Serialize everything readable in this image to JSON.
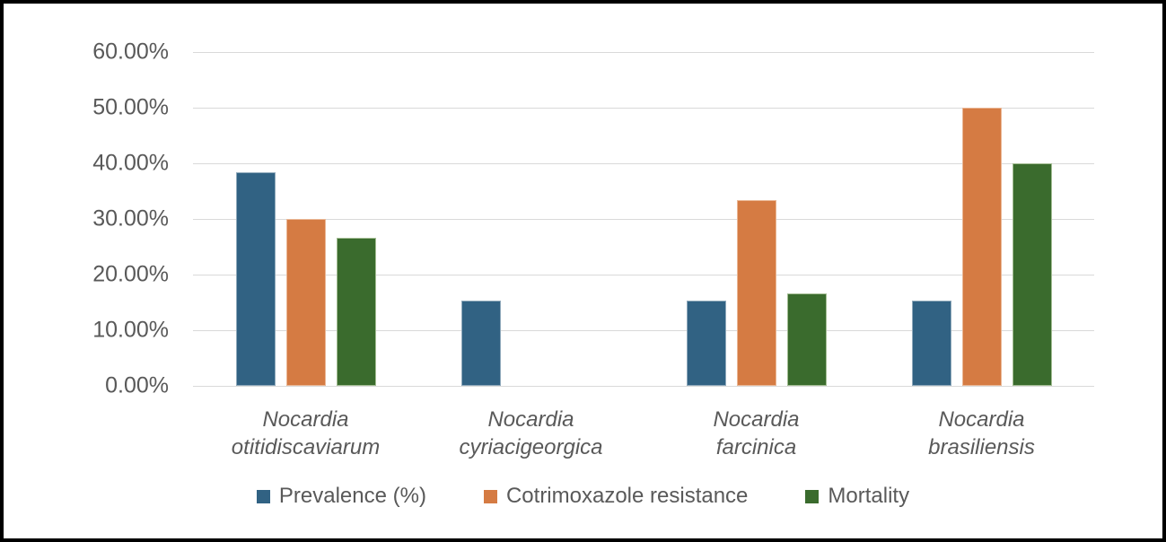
{
  "chart_data": {
    "type": "bar",
    "categories": [
      {
        "name": "Nocardia otitidiscaviarum",
        "lines": [
          "Nocardia",
          "otitidiscaviarum"
        ]
      },
      {
        "name": "Nocardia cyriacigeorgica",
        "lines": [
          "Nocardia",
          "cyriacigeorgica"
        ]
      },
      {
        "name": "Nocardia farcinica",
        "lines": [
          "Nocardia",
          "farcinica"
        ]
      },
      {
        "name": "Nocardia brasiliensis",
        "lines": [
          "Nocardia",
          "brasiliensis"
        ]
      }
    ],
    "series": [
      {
        "name": "Prevalence (%)",
        "color": "#316283",
        "border_color": "#8fa9bb",
        "values": [
          38.46,
          15.38,
          15.38,
          15.38
        ]
      },
      {
        "name": "Cotrimoxazole resistance",
        "color": "#d57b43",
        "border_color": "#eab795",
        "values": [
          30.0,
          0,
          33.33,
          50.0
        ]
      },
      {
        "name": "Mortality",
        "color": "#3a6b2d",
        "border_color": "#a3bd93",
        "values": [
          26.67,
          0,
          16.67,
          40.0
        ]
      }
    ],
    "y_ticks": [
      {
        "value": 60,
        "label": "60.00%"
      },
      {
        "value": 50,
        "label": "50.00%"
      },
      {
        "value": 40,
        "label": "40.00%"
      },
      {
        "value": 30,
        "label": "30.00%"
      },
      {
        "value": 20,
        "label": "20.00%"
      },
      {
        "value": 10,
        "label": "10.00%"
      },
      {
        "value": 0,
        "label": "0.00%"
      }
    ],
    "ylim": [
      0,
      60
    ],
    "title": "",
    "xlabel": "",
    "ylabel": "",
    "grid": "horizontal",
    "gridline_color": "#d9d9d9",
    "axis_text_color": "#595959",
    "frame_border_color": "#000000",
    "legend_position": "bottom"
  }
}
